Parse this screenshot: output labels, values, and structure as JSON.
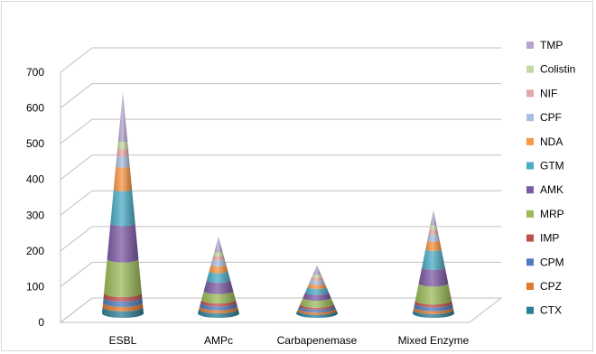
{
  "chart_data": {
    "type": "bar",
    "subtype": "3d-stacked-cone",
    "categories": [
      "ESBL",
      "AMPc",
      "Carbapenemase",
      "Mixed Enzyme"
    ],
    "ylim": [
      0,
      700
    ],
    "yticks": [
      0,
      100,
      200,
      300,
      400,
      500,
      600,
      700
    ],
    "grid": true,
    "legend": "right",
    "series": [
      {
        "name": "CTX",
        "color": "#2e7f98",
        "values": [
          18,
          12,
          8,
          10
        ]
      },
      {
        "name": "CPZ",
        "color": "#e07a2c",
        "values": [
          12,
          8,
          6,
          8
        ]
      },
      {
        "name": "CPM",
        "color": "#4f7bbf",
        "values": [
          15,
          10,
          7,
          10
        ]
      },
      {
        "name": "IMP",
        "color": "#c0504d",
        "values": [
          12,
          8,
          5,
          8
        ]
      },
      {
        "name": "MRP",
        "color": "#9bbb59",
        "values": [
          95,
          25,
          18,
          48
        ]
      },
      {
        "name": "AMK",
        "color": "#7d5aa6",
        "values": [
          100,
          30,
          15,
          45
        ]
      },
      {
        "name": "GTM",
        "color": "#4bacc6",
        "values": [
          95,
          25,
          15,
          50
        ]
      },
      {
        "name": "NDA",
        "color": "#f79646",
        "values": [
          65,
          18,
          10,
          25
        ]
      },
      {
        "name": "CPF",
        "color": "#a9bfe0",
        "values": [
          30,
          15,
          10,
          18
        ]
      },
      {
        "name": "NIF",
        "color": "#e6a8a6",
        "values": [
          20,
          12,
          8,
          15
        ]
      },
      {
        "name": "Colistin",
        "color": "#c4d9a2",
        "values": [
          20,
          10,
          8,
          10
        ]
      },
      {
        "name": "TMP",
        "color": "#b7a5cf",
        "values": [
          138,
          42,
          25,
          43
        ]
      }
    ]
  }
}
